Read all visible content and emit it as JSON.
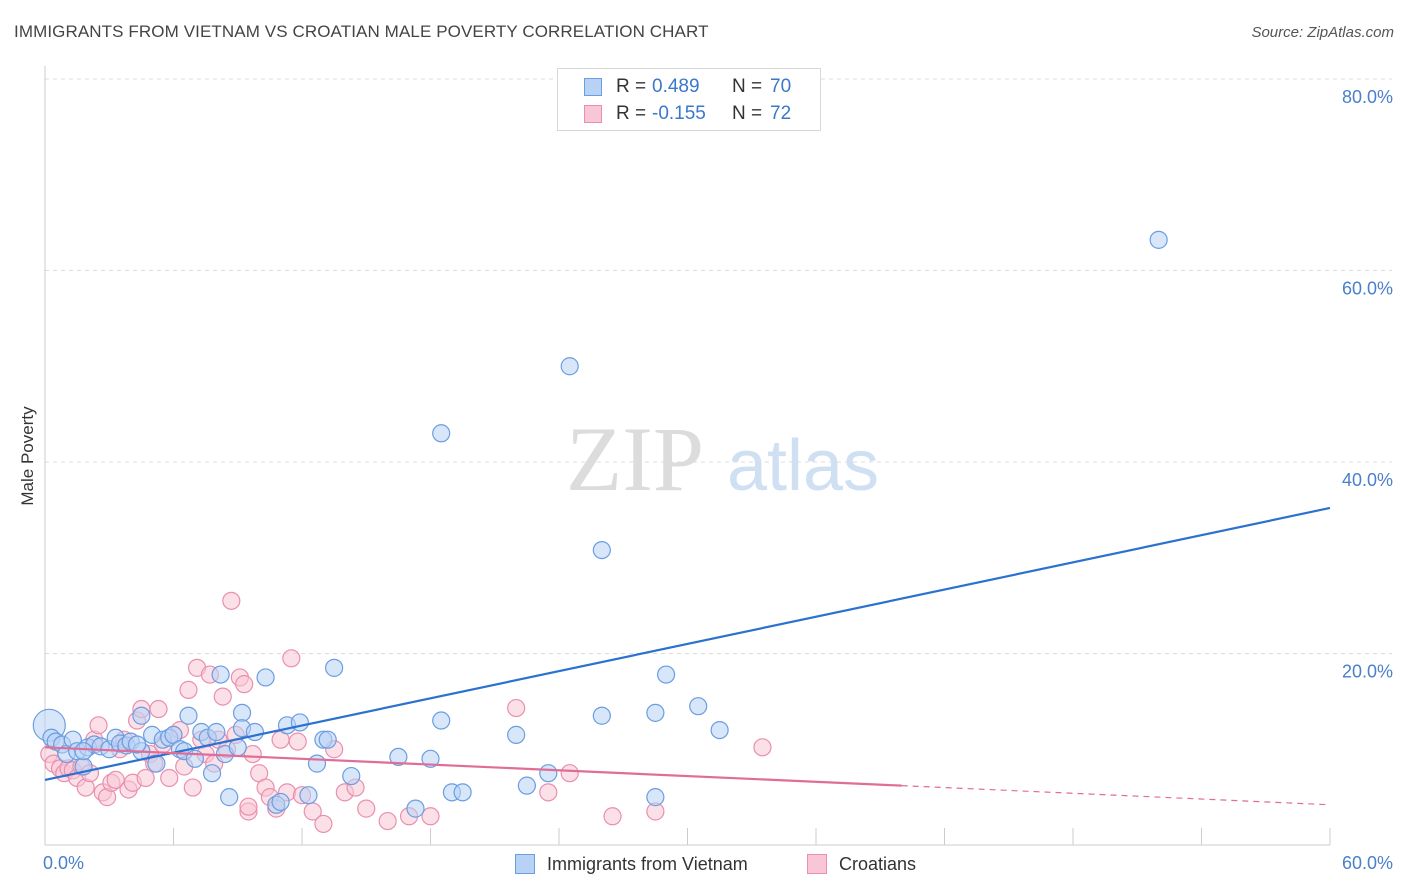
{
  "title": "IMMIGRANTS FROM VIETNAM VS CROATIAN MALE POVERTY CORRELATION CHART",
  "source": "Source: ZipAtlas.com",
  "watermark": {
    "zip": "ZIP",
    "atlas": "atlas"
  },
  "legend_top": [
    {
      "r_label": "R =",
      "r_value": "0.489",
      "n_label": "N =",
      "n_value": "70"
    },
    {
      "r_label": "R =",
      "r_value": "-0.155",
      "n_label": "N =",
      "n_value": "72"
    }
  ],
  "legend_bottom": [
    "Immigrants from Vietnam",
    "Croatians"
  ],
  "colors": {
    "blue_fill": "#b8d2f5",
    "blue_stroke": "#6b9de0",
    "blue_line": "#2b72d0",
    "pink_fill": "#f8c6d6",
    "pink_stroke": "#ea8fae",
    "pink_line": "#e06d97",
    "grid": "#dcdcdc",
    "axis_text": "#4a7fcb"
  },
  "chart_data": {
    "type": "scatter",
    "title": "IMMIGRANTS FROM VIETNAM VS CROATIAN MALE POVERTY CORRELATION CHART",
    "xlabel": "",
    "ylabel": "Male Poverty",
    "xlim": [
      0,
      60
    ],
    "ylim": [
      0,
      80
    ],
    "x_tick_labels": [
      "0.0%",
      "60.0%"
    ],
    "y_ticks": [
      20,
      40,
      60,
      80
    ],
    "y_tick_labels": [
      "20.0%",
      "40.0%",
      "60.0%",
      "80.0%"
    ],
    "grid": true,
    "series": [
      {
        "name": "Immigrants from Vietnam",
        "r": 0.489,
        "n": 70,
        "trend": {
          "x": [
            0,
            60
          ],
          "y": [
            6.8,
            35.2
          ],
          "dashed_from": null
        },
        "points": [
          [
            0.2,
            12.5
          ],
          [
            0.3,
            11.2
          ],
          [
            0.5,
            10.8
          ],
          [
            0.8,
            10.5
          ],
          [
            1.0,
            9.5
          ],
          [
            1.3,
            11.0
          ],
          [
            1.5,
            9.8
          ],
          [
            1.8,
            8.2
          ],
          [
            2.0,
            10.2
          ],
          [
            2.3,
            10.5
          ],
          [
            2.6,
            10.3
          ],
          [
            3.0,
            10.0
          ],
          [
            3.3,
            11.2
          ],
          [
            3.5,
            10.6
          ],
          [
            3.8,
            10.4
          ],
          [
            4.0,
            10.8
          ],
          [
            4.5,
            13.5
          ],
          [
            4.5,
            9.8
          ],
          [
            5.0,
            11.5
          ],
          [
            5.2,
            8.5
          ],
          [
            5.5,
            11.0
          ],
          [
            5.8,
            11.2
          ],
          [
            6.0,
            11.5
          ],
          [
            6.3,
            10.0
          ],
          [
            6.5,
            9.8
          ],
          [
            6.7,
            13.5
          ],
          [
            7.0,
            9.0
          ],
          [
            7.3,
            11.8
          ],
          [
            7.6,
            11.2
          ],
          [
            7.8,
            7.5
          ],
          [
            8.0,
            11.8
          ],
          [
            8.2,
            17.8
          ],
          [
            8.4,
            9.5
          ],
          [
            8.6,
            5.0
          ],
          [
            9.2,
            13.8
          ],
          [
            9.2,
            12.2
          ],
          [
            9.8,
            11.8
          ],
          [
            10.3,
            17.5
          ],
          [
            10.8,
            4.2
          ],
          [
            11.0,
            4.5
          ],
          [
            11.3,
            12.5
          ],
          [
            11.9,
            12.8
          ],
          [
            12.3,
            5.2
          ],
          [
            12.7,
            8.5
          ],
          [
            13.0,
            11.0
          ],
          [
            13.2,
            11.0
          ],
          [
            13.5,
            18.5
          ],
          [
            14.3,
            7.2
          ],
          [
            16.5,
            9.2
          ],
          [
            17.3,
            3.8
          ],
          [
            18.0,
            9.0
          ],
          [
            18.5,
            13.0
          ],
          [
            19.0,
            5.5
          ],
          [
            19.5,
            5.5
          ],
          [
            22.0,
            11.5
          ],
          [
            22.5,
            6.2
          ],
          [
            23.5,
            7.5
          ],
          [
            24.5,
            50.0
          ],
          [
            26.0,
            13.5
          ],
          [
            26.0,
            30.8
          ],
          [
            28.5,
            5.0
          ],
          [
            28.5,
            13.8
          ],
          [
            29.0,
            17.8
          ],
          [
            30.5,
            14.5
          ],
          [
            31.5,
            12.0
          ],
          [
            52.0,
            63.2
          ],
          [
            18.5,
            43.0
          ],
          [
            4.3,
            10.5
          ],
          [
            1.8,
            9.8
          ],
          [
            9.0,
            10.2
          ]
        ]
      },
      {
        "name": "Croatians",
        "r": -0.155,
        "n": 72,
        "trend": {
          "x": [
            0,
            60
          ],
          "y": [
            10.2,
            4.2
          ],
          "dashed_from": 40
        },
        "points": [
          [
            0.2,
            9.5
          ],
          [
            0.4,
            8.5
          ],
          [
            0.7,
            8.0
          ],
          [
            0.9,
            7.5
          ],
          [
            1.1,
            8.0
          ],
          [
            1.3,
            7.8
          ],
          [
            1.5,
            7.0
          ],
          [
            1.7,
            8.2
          ],
          [
            1.9,
            6.0
          ],
          [
            2.1,
            7.5
          ],
          [
            2.3,
            11.0
          ],
          [
            2.5,
            12.5
          ],
          [
            2.7,
            5.5
          ],
          [
            2.9,
            5.0
          ],
          [
            3.1,
            6.5
          ],
          [
            3.3,
            6.8
          ],
          [
            3.5,
            10.0
          ],
          [
            3.7,
            11.0
          ],
          [
            3.9,
            5.8
          ],
          [
            4.1,
            6.5
          ],
          [
            4.3,
            13.0
          ],
          [
            4.5,
            14.2
          ],
          [
            4.7,
            7.0
          ],
          [
            4.9,
            9.5
          ],
          [
            5.1,
            8.5
          ],
          [
            5.3,
            14.2
          ],
          [
            5.5,
            10.5
          ],
          [
            5.8,
            7.0
          ],
          [
            6.0,
            11.5
          ],
          [
            6.3,
            12.0
          ],
          [
            6.5,
            8.2
          ],
          [
            6.7,
            16.2
          ],
          [
            6.9,
            6.0
          ],
          [
            7.1,
            18.5
          ],
          [
            7.3,
            11.0
          ],
          [
            7.5,
            9.5
          ],
          [
            7.7,
            17.8
          ],
          [
            7.9,
            8.5
          ],
          [
            8.1,
            11.0
          ],
          [
            8.3,
            15.5
          ],
          [
            8.5,
            10.0
          ],
          [
            8.7,
            25.5
          ],
          [
            8.9,
            11.5
          ],
          [
            9.1,
            17.5
          ],
          [
            9.3,
            16.8
          ],
          [
            9.5,
            3.5
          ],
          [
            9.7,
            9.5
          ],
          [
            10.0,
            7.5
          ],
          [
            10.3,
            6.0
          ],
          [
            10.5,
            5.0
          ],
          [
            10.8,
            3.8
          ],
          [
            11.0,
            11.0
          ],
          [
            11.3,
            5.5
          ],
          [
            11.5,
            19.5
          ],
          [
            11.8,
            10.8
          ],
          [
            12.0,
            5.2
          ],
          [
            12.5,
            3.5
          ],
          [
            13.0,
            2.2
          ],
          [
            13.5,
            10.0
          ],
          [
            14.0,
            5.5
          ],
          [
            14.5,
            6.0
          ],
          [
            15.0,
            3.8
          ],
          [
            16.0,
            2.5
          ],
          [
            17.0,
            3.0
          ],
          [
            18.0,
            3.0
          ],
          [
            22.0,
            14.3
          ],
          [
            23.5,
            5.5
          ],
          [
            24.5,
            7.5
          ],
          [
            26.5,
            3.0
          ],
          [
            28.5,
            3.5
          ],
          [
            33.5,
            10.2
          ],
          [
            9.5,
            4.0
          ]
        ]
      }
    ]
  }
}
